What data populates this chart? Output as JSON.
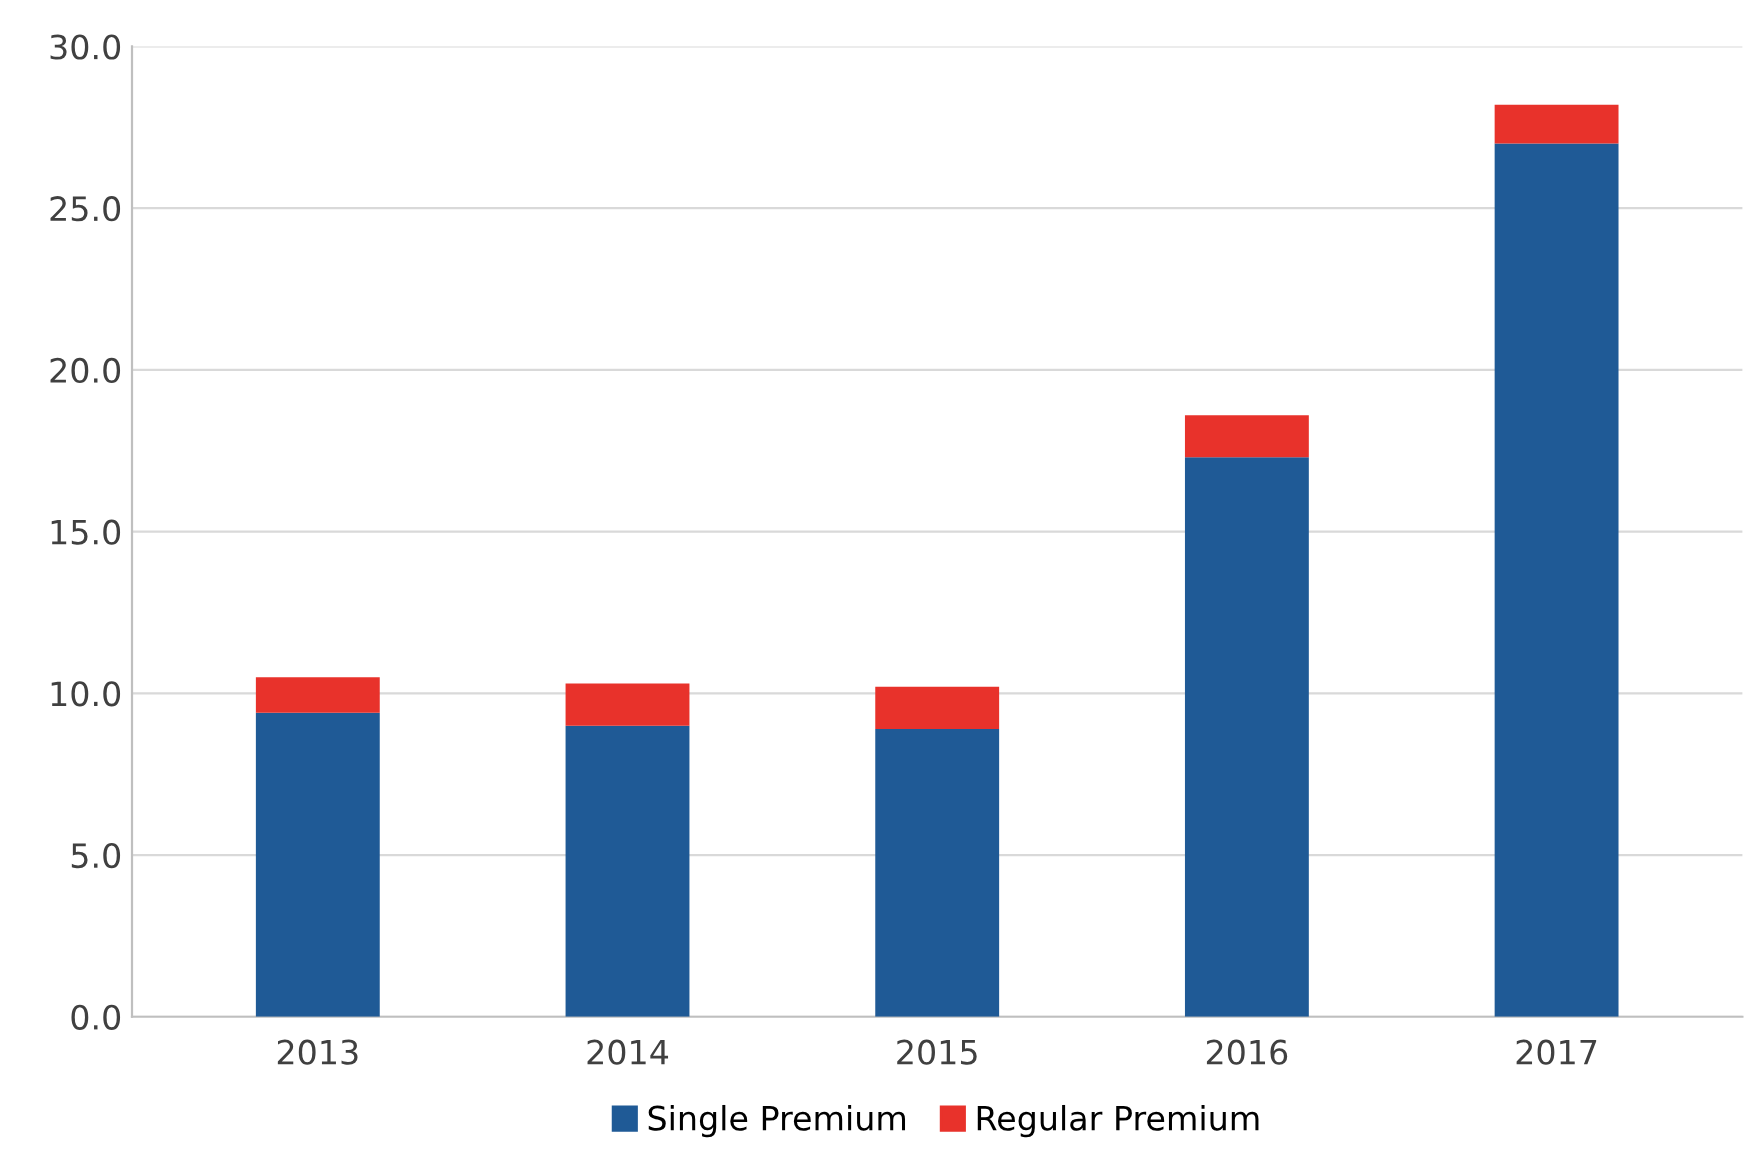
{
  "chart_data": {
    "type": "bar",
    "stacked": true,
    "categories": [
      "2013",
      "2014",
      "2015",
      "2016",
      "2017"
    ],
    "series": [
      {
        "name": "Single Premium",
        "color": "#1f5a96",
        "values": [
          9.4,
          9.0,
          8.9,
          17.3,
          27.0
        ]
      },
      {
        "name": "Regular Premium",
        "color": "#e8322b",
        "values": [
          1.1,
          1.3,
          1.3,
          1.3,
          1.2
        ]
      }
    ],
    "ylim": [
      0,
      30
    ],
    "yticks": [
      {
        "value": 0,
        "label": "0.0"
      },
      {
        "value": 5,
        "label": "5.0"
      },
      {
        "value": 10,
        "label": "10.0"
      },
      {
        "value": 15,
        "label": "15.0"
      },
      {
        "value": 20,
        "label": "20.0"
      },
      {
        "value": 25,
        "label": "25.0"
      },
      {
        "value": 30,
        "label": "30.0"
      }
    ],
    "grid": "y",
    "legend": "bottom"
  }
}
